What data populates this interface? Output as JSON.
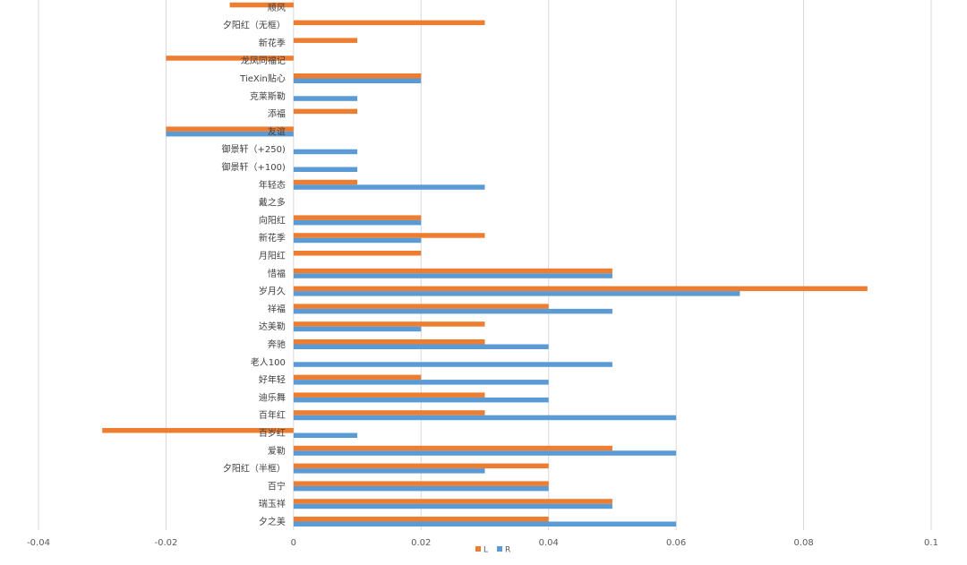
{
  "chart_data": {
    "type": "bar",
    "orientation": "horizontal",
    "categories": [
      "夕之美",
      "瑞玉祥",
      "百宁",
      "夕阳红（半框）",
      "爱勒",
      "百岁红",
      "百年红",
      "迪乐舞",
      "好年轻",
      "老人100",
      "奔驰",
      "达美勒",
      "祥福",
      "岁月久",
      "惜福",
      "月阳红",
      "新花季",
      "向阳红",
      "戴之多",
      "年轻态",
      "御景轩（+100)",
      "御景轩（+250)",
      "友谊",
      "添福",
      "克莱斯勒",
      "TieXin贴心",
      "龙凤同福记",
      "新花季",
      "夕阳红（无框）",
      "顺风"
    ],
    "series": [
      {
        "name": "L",
        "color": "#ED7D31",
        "values": [
          0.04,
          0.05,
          0.04,
          0.04,
          0.05,
          -0.03,
          0.03,
          0.03,
          0.02,
          null,
          0.03,
          0.03,
          0.04,
          0.09,
          0.05,
          0.02,
          0.03,
          0.02,
          null,
          0.01,
          null,
          null,
          -0.02,
          0.01,
          null,
          0.02,
          -0.02,
          0.01,
          0.03,
          -0.01
        ]
      },
      {
        "name": "R",
        "color": "#5B9BD5",
        "values": [
          0.06,
          0.05,
          0.04,
          0.03,
          0.06,
          0.01,
          0.06,
          0.04,
          0.04,
          0.05,
          0.04,
          0.02,
          0.05,
          0.07,
          0.05,
          null,
          0.02,
          0.02,
          null,
          0.03,
          0.01,
          0.01,
          -0.02,
          null,
          0.01,
          0.02,
          null,
          null,
          null,
          null
        ]
      }
    ],
    "xlim": [
      -0.04,
      0.1
    ],
    "xticks": [
      "-0.04",
      "-0.02",
      "0",
      "0.02",
      "0.04",
      "0.06",
      "0.08",
      "0.1"
    ],
    "grid": true,
    "legend_position": "bottom"
  }
}
